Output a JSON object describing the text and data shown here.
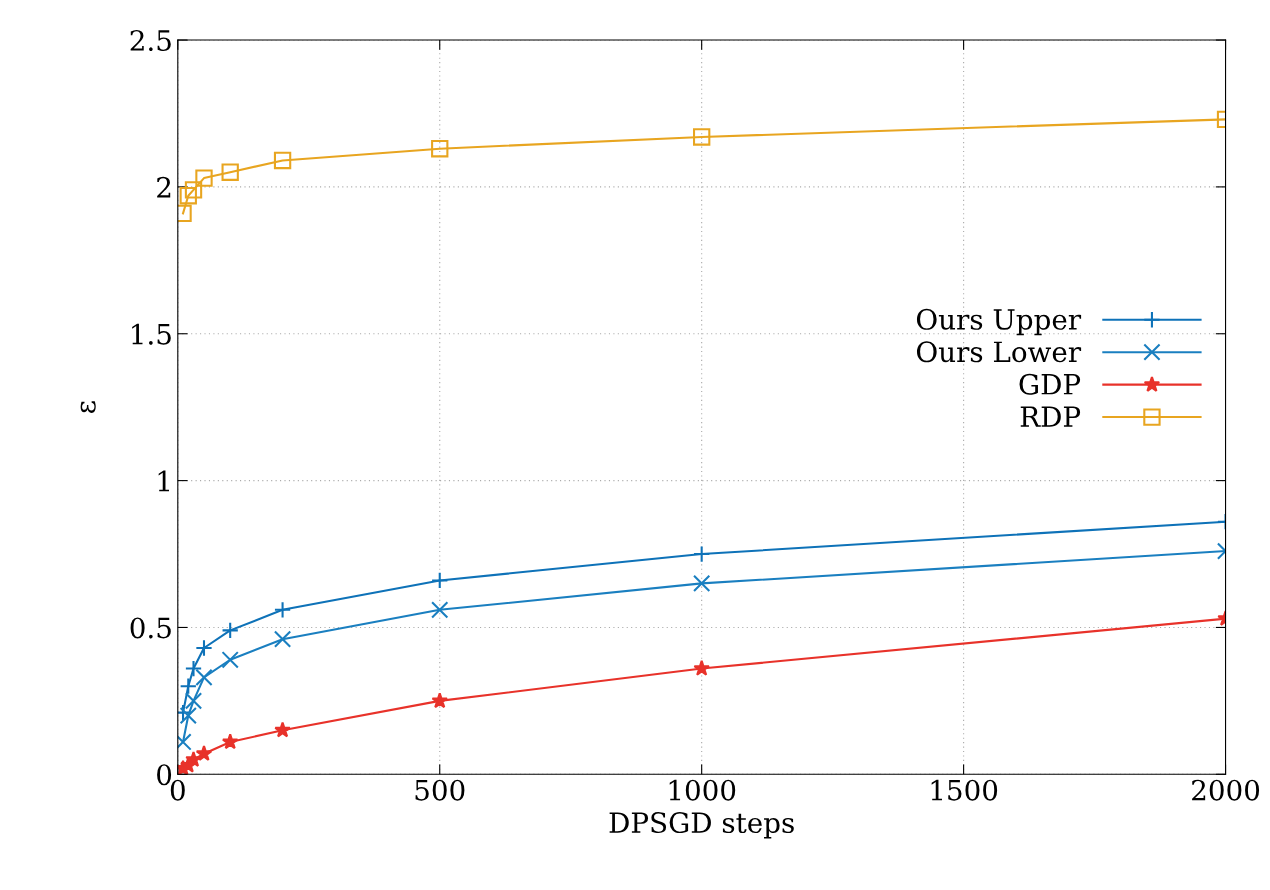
{
  "chart_data": {
    "type": "line",
    "xlabel": "DPSGD steps",
    "ylabel": "ε",
    "x": [
      10,
      20,
      30,
      50,
      100,
      200,
      500,
      1000,
      2000
    ],
    "xlim": [
      0,
      2000
    ],
    "xticks": [
      0,
      500,
      1000,
      1500,
      2000
    ],
    "ylim": [
      0,
      2.5
    ],
    "yticks": [
      0,
      0.5,
      1,
      1.5,
      2,
      2.5
    ],
    "grid": true,
    "legend": "right",
    "series": [
      {
        "name": "Ours Upper",
        "color": "#0e72b8",
        "marker": "cross",
        "values": [
          0.21,
          0.3,
          0.36,
          0.43,
          0.49,
          0.56,
          0.66,
          0.75,
          0.86
        ]
      },
      {
        "name": "Ours Lower",
        "color": "#1a7fc0",
        "marker": "x",
        "values": [
          0.11,
          0.2,
          0.25,
          0.33,
          0.39,
          0.46,
          0.56,
          0.65,
          0.76
        ]
      },
      {
        "name": "GDP",
        "color": "#e8322a",
        "marker": "star",
        "values": [
          0.02,
          0.03,
          0.05,
          0.07,
          0.11,
          0.15,
          0.25,
          0.36,
          0.53
        ]
      },
      {
        "name": "RDP",
        "color": "#e8a520",
        "marker": "square",
        "values": [
          1.91,
          1.97,
          1.99,
          2.03,
          2.05,
          2.09,
          2.13,
          2.17,
          2.23
        ]
      }
    ]
  }
}
